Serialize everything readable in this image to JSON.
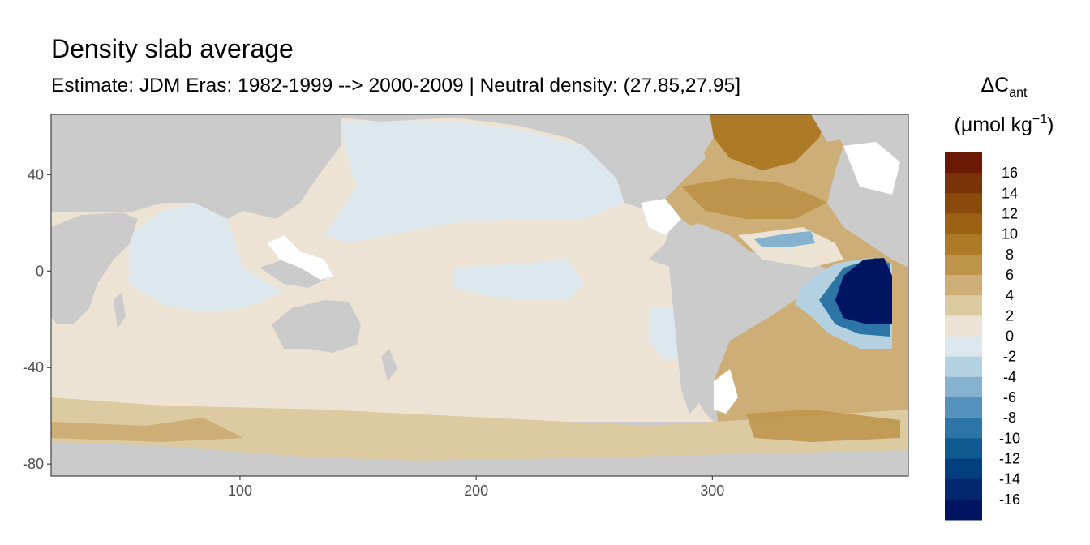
{
  "chart_data": {
    "type": "heatmap",
    "title": "Density slab average",
    "subtitle": "Estimate: JDM Eras: 1982-1999 --> 2000-2009 | Neutral density: (27.85,27.95]",
    "xlabel": "",
    "ylabel": "",
    "xlim": [
      20,
      383
    ],
    "ylim": [
      -85,
      65
    ],
    "x_ticks": [
      100,
      200,
      300
    ],
    "y_ticks": [
      40,
      0,
      -40,
      -80
    ],
    "grid": false,
    "legend": {
      "title_main": "ΔC",
      "title_sub": "ant",
      "title_units": "(μmol kg",
      "title_exp": "−1",
      "title_close": ")",
      "placement": "right",
      "bins": [
        16,
        14,
        12,
        10,
        8,
        6,
        4,
        2,
        0,
        -2,
        -4,
        -6,
        -8,
        -10,
        -12,
        -14,
        -16
      ],
      "colors": [
        "#6b1804",
        "#7b3208",
        "#8a4a0c",
        "#9b6214",
        "#ad7a28",
        "#bd944a",
        "#cdae76",
        "#dccaa0",
        "#ece3d4",
        "#dde8ee",
        "#b4d1e2",
        "#84b2cf",
        "#5692bb",
        "#2d75a6",
        "#0e5a91",
        "#033f7f",
        "#02286f",
        "#001561"
      ]
    },
    "land_color": "#cbcbcb",
    "no_data_color": "#ffffff",
    "regions": [
      {
        "name": "pacific-north",
        "value": -1,
        "lon": [
          165,
          245
        ],
        "lat": [
          20,
          56
        ]
      },
      {
        "name": "pacific-equatorial",
        "value": -1,
        "lon": [
          190,
          260
        ],
        "lat": [
          -20,
          10
        ]
      },
      {
        "name": "indian-north",
        "value": -1,
        "lon": [
          45,
          110
        ],
        "lat": [
          -12,
          20
        ]
      },
      {
        "name": "pacific-east",
        "value": -1,
        "lon": [
          240,
          268
        ],
        "lat": [
          -45,
          -15
        ]
      },
      {
        "name": "atlantic-north",
        "value": 7,
        "lon": [
          278,
          360
        ],
        "lat": [
          15,
          60
        ]
      },
      {
        "name": "atlantic-south",
        "value": 5,
        "lon": [
          300,
          383
        ],
        "lat": [
          -50,
          -15
        ]
      },
      {
        "name": "southern-ocean",
        "value": 4,
        "lon": [
          20,
          383
        ],
        "lat": [
          -72,
          -55
        ]
      },
      {
        "name": "atlantic-negative-core",
        "value": -16,
        "lon": [
          360,
          383
        ],
        "lat": [
          -25,
          5
        ]
      }
    ]
  }
}
